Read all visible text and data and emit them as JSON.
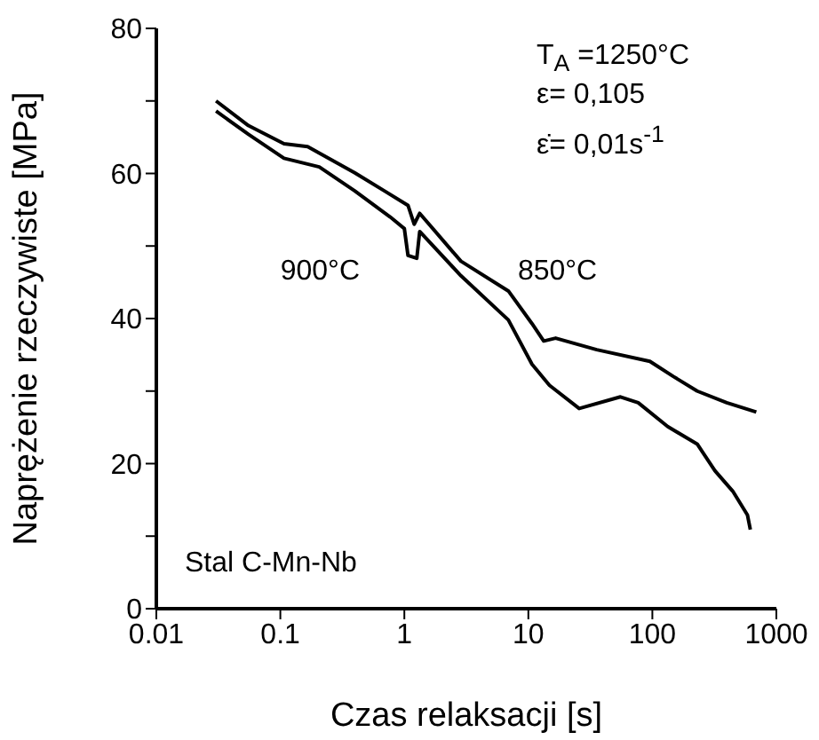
{
  "chart_data": {
    "type": "line",
    "xlabel": "Czas relaksacji  [s]",
    "ylabel": "Naprężenie rzeczywiste [MPa]",
    "log": "x",
    "xlim": [
      0.01,
      1000
    ],
    "xticks": [
      0.01,
      0.1,
      1,
      10,
      100,
      1000
    ],
    "ylim": [
      0,
      80
    ],
    "yticks": [
      0,
      {
        "value": 10,
        "label": null
      },
      20,
      {
        "value": 30,
        "label": null
      },
      40,
      {
        "value": 50,
        "label": null
      },
      60,
      {
        "value": 70,
        "label": null
      },
      80
    ],
    "marker": "none",
    "line_style": "solid",
    "annotations": [
      "T$_{A}$ =1250°C",
      "ε= 0,105",
      "ε̇= 0,01s$^{-1}$",
      "Stal C-Mn-Nb"
    ],
    "series": [
      {
        "name": "850°C",
        "color": "#000000",
        "x": [
          0.0303,
          0.0553,
          0.107,
          0.166,
          0.398,
          0.69,
          1.07,
          1.2,
          1.33,
          2.86,
          6.9,
          10.7,
          13.3,
          16.6,
          35.6,
          95.5,
          148,
          230,
          398,
          689
        ],
        "values": [
          70,
          66.6,
          64.1,
          63.7,
          60.1,
          57.6,
          55.6,
          53,
          54.5,
          47.9,
          43.8,
          39.3,
          36.9,
          37.3,
          35.7,
          34.1,
          32,
          30,
          28.4,
          27.1
        ]
      },
      {
        "name": "900°C",
        "color": "#000000",
        "x": [
          0.0303,
          0.0553,
          0.107,
          0.206,
          0.398,
          0.769,
          1.0,
          1.07,
          1.26,
          1.33,
          2.86,
          6.9,
          10.7,
          14.8,
          25.7,
          55.3,
          76.9,
          133,
          230,
          320,
          445,
          585,
          617
        ],
        "values": [
          68.6,
          65.4,
          62.1,
          60.9,
          57.6,
          54,
          52.4,
          48.7,
          48.3,
          52,
          45.9,
          39.8,
          33.7,
          30.8,
          27.6,
          29.2,
          28.4,
          25.1,
          22.7,
          19,
          16.2,
          12.9,
          10.9
        ]
      }
    ]
  }
}
